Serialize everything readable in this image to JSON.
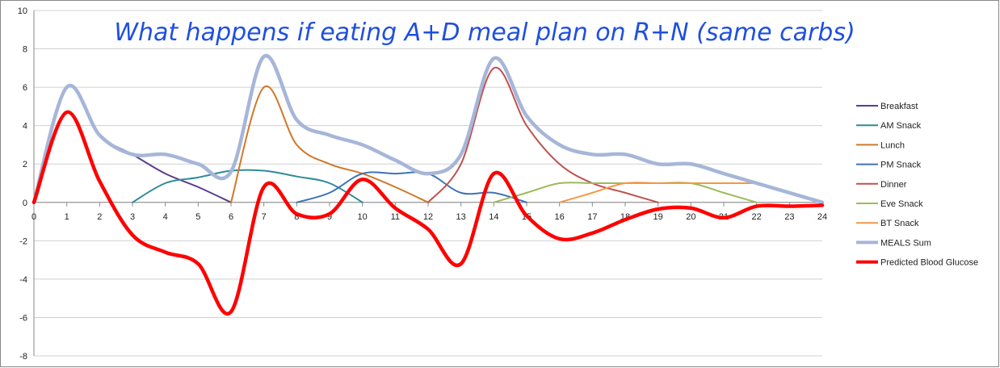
{
  "chart_data": {
    "type": "line",
    "title": "What happens if eating A+D meal plan on R+N (same carbs)",
    "xlim": [
      0,
      24
    ],
    "ylim": [
      -8,
      10
    ],
    "x_ticks": [
      0,
      1,
      2,
      3,
      4,
      5,
      6,
      7,
      8,
      9,
      10,
      11,
      12,
      13,
      14,
      15,
      16,
      17,
      18,
      19,
      20,
      21,
      22,
      23,
      24
    ],
    "y_ticks": [
      -8,
      -6,
      -4,
      -2,
      0,
      2,
      4,
      6,
      8,
      10
    ],
    "grid": "horizontal",
    "legend_position": "right",
    "series": [
      {
        "name": "Breakfast",
        "color": "#5b3f8c",
        "width": 2,
        "x": [
          0,
          1,
          2,
          3,
          4,
          5,
          6
        ],
        "y": [
          0,
          6,
          3.5,
          2.5,
          1.5,
          0.8,
          0
        ]
      },
      {
        "name": "AM Snack",
        "color": "#2e8b9a",
        "width": 2,
        "x": [
          3,
          4,
          5,
          6,
          7,
          8,
          9,
          10
        ],
        "y": [
          0,
          1,
          1.3,
          1.65,
          1.65,
          1.35,
          1.0,
          0
        ]
      },
      {
        "name": "Lunch",
        "color": "#d0782a",
        "width": 2,
        "x": [
          6,
          7,
          8,
          9,
          10,
          11,
          12
        ],
        "y": [
          0,
          6,
          3,
          2,
          1.5,
          0.8,
          0
        ]
      },
      {
        "name": "PM Snack",
        "color": "#3d73b5",
        "width": 2,
        "x": [
          8,
          9,
          10,
          11,
          12,
          13,
          14,
          15
        ],
        "y": [
          0,
          0.5,
          1.5,
          1.5,
          1.5,
          0.5,
          0.5,
          0
        ]
      },
      {
        "name": "Dinner",
        "color": "#c0504d",
        "width": 2,
        "x": [
          12,
          13,
          14,
          15,
          16,
          17,
          18,
          19
        ],
        "y": [
          0,
          2,
          7,
          4,
          2,
          1,
          0.5,
          0
        ]
      },
      {
        "name": "Eve Snack",
        "color": "#9bbb59",
        "width": 2,
        "x": [
          14,
          15,
          16,
          17,
          18,
          19,
          20,
          21,
          22
        ],
        "y": [
          0,
          0.5,
          1,
          1,
          1,
          1,
          1,
          0.5,
          0
        ]
      },
      {
        "name": "BT Snack",
        "color": "#f79646",
        "width": 2,
        "x": [
          16,
          17,
          18,
          19,
          20,
          21,
          22
        ],
        "y": [
          0,
          0.5,
          1,
          1,
          1,
          1,
          1
        ]
      },
      {
        "name": "MEALS Sum",
        "color": "#a6b6d8",
        "width": 4.5,
        "x": [
          0,
          1,
          2,
          3,
          4,
          5,
          6,
          7,
          8,
          9,
          10,
          11,
          12,
          13,
          14,
          15,
          16,
          17,
          18,
          19,
          20,
          21,
          22,
          23,
          24
        ],
        "y": [
          0,
          6,
          3.5,
          2.5,
          2.5,
          2,
          1.6,
          7.6,
          4.3,
          3.5,
          3,
          2.2,
          1.5,
          2.5,
          7.5,
          4.5,
          3,
          2.5,
          2.5,
          2,
          2,
          1.5,
          1,
          0.5,
          0
        ]
      },
      {
        "name": "Predicted Blood Glucose",
        "color": "#ff0000",
        "width": 4.5,
        "x": [
          0,
          1,
          2,
          3,
          4,
          5,
          6,
          7,
          8,
          9,
          10,
          11,
          12,
          13,
          14,
          15,
          16,
          17,
          18,
          19,
          20,
          21,
          22,
          23,
          24
        ],
        "y": [
          0,
          4.7,
          1.1,
          -1.7,
          -2.6,
          -3.2,
          -5.7,
          0.8,
          -0.6,
          -0.6,
          1.2,
          -0.3,
          -1.4,
          -3.2,
          1.5,
          -0.7,
          -1.9,
          -1.6,
          -0.9,
          -0.35,
          -0.3,
          -0.8,
          -0.2,
          -0.2,
          -0.15
        ]
      }
    ]
  }
}
